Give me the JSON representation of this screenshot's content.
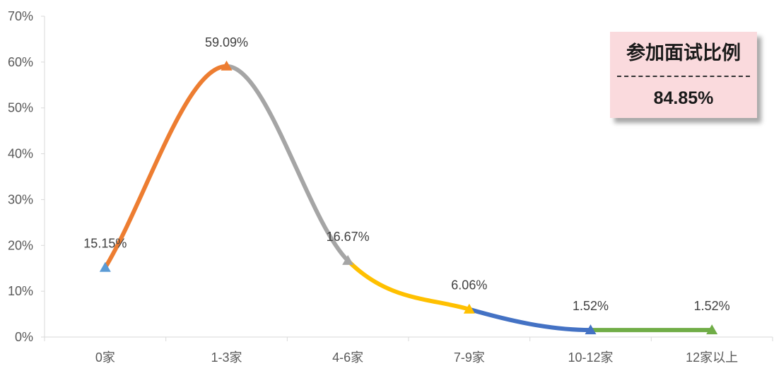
{
  "chart_data": {
    "type": "line",
    "smooth": true,
    "categories": [
      "0家",
      "1-3家",
      "4-6家",
      "7-9家",
      "10-12家",
      "12家以上"
    ],
    "values": [
      15.15,
      59.09,
      16.67,
      6.06,
      1.52,
      1.52
    ],
    "data_labels": [
      "15.15%",
      "59.09%",
      "16.67%",
      "6.06%",
      "1.52%",
      "1.52%"
    ],
    "ylim": [
      0,
      70
    ],
    "yticks": [
      0,
      10,
      20,
      30,
      40,
      50,
      60,
      70
    ],
    "ytick_labels": [
      "0%",
      "10%",
      "20%",
      "30%",
      "40%",
      "50%",
      "60%",
      "70%"
    ],
    "grid": false,
    "marker": "triangle",
    "segment_colors": [
      "#ED7D31",
      "#A5A5A5",
      "#FFC000",
      "#4472C4",
      "#70AD47"
    ],
    "marker_colors": [
      "#5B9BD5",
      "#ED7D31",
      "#A5A5A5",
      "#FFC000",
      "#4472C4",
      "#70AD47"
    ]
  },
  "callout": {
    "title": "参加面试比例",
    "value": "84.85%",
    "background": "#FADADD"
  }
}
